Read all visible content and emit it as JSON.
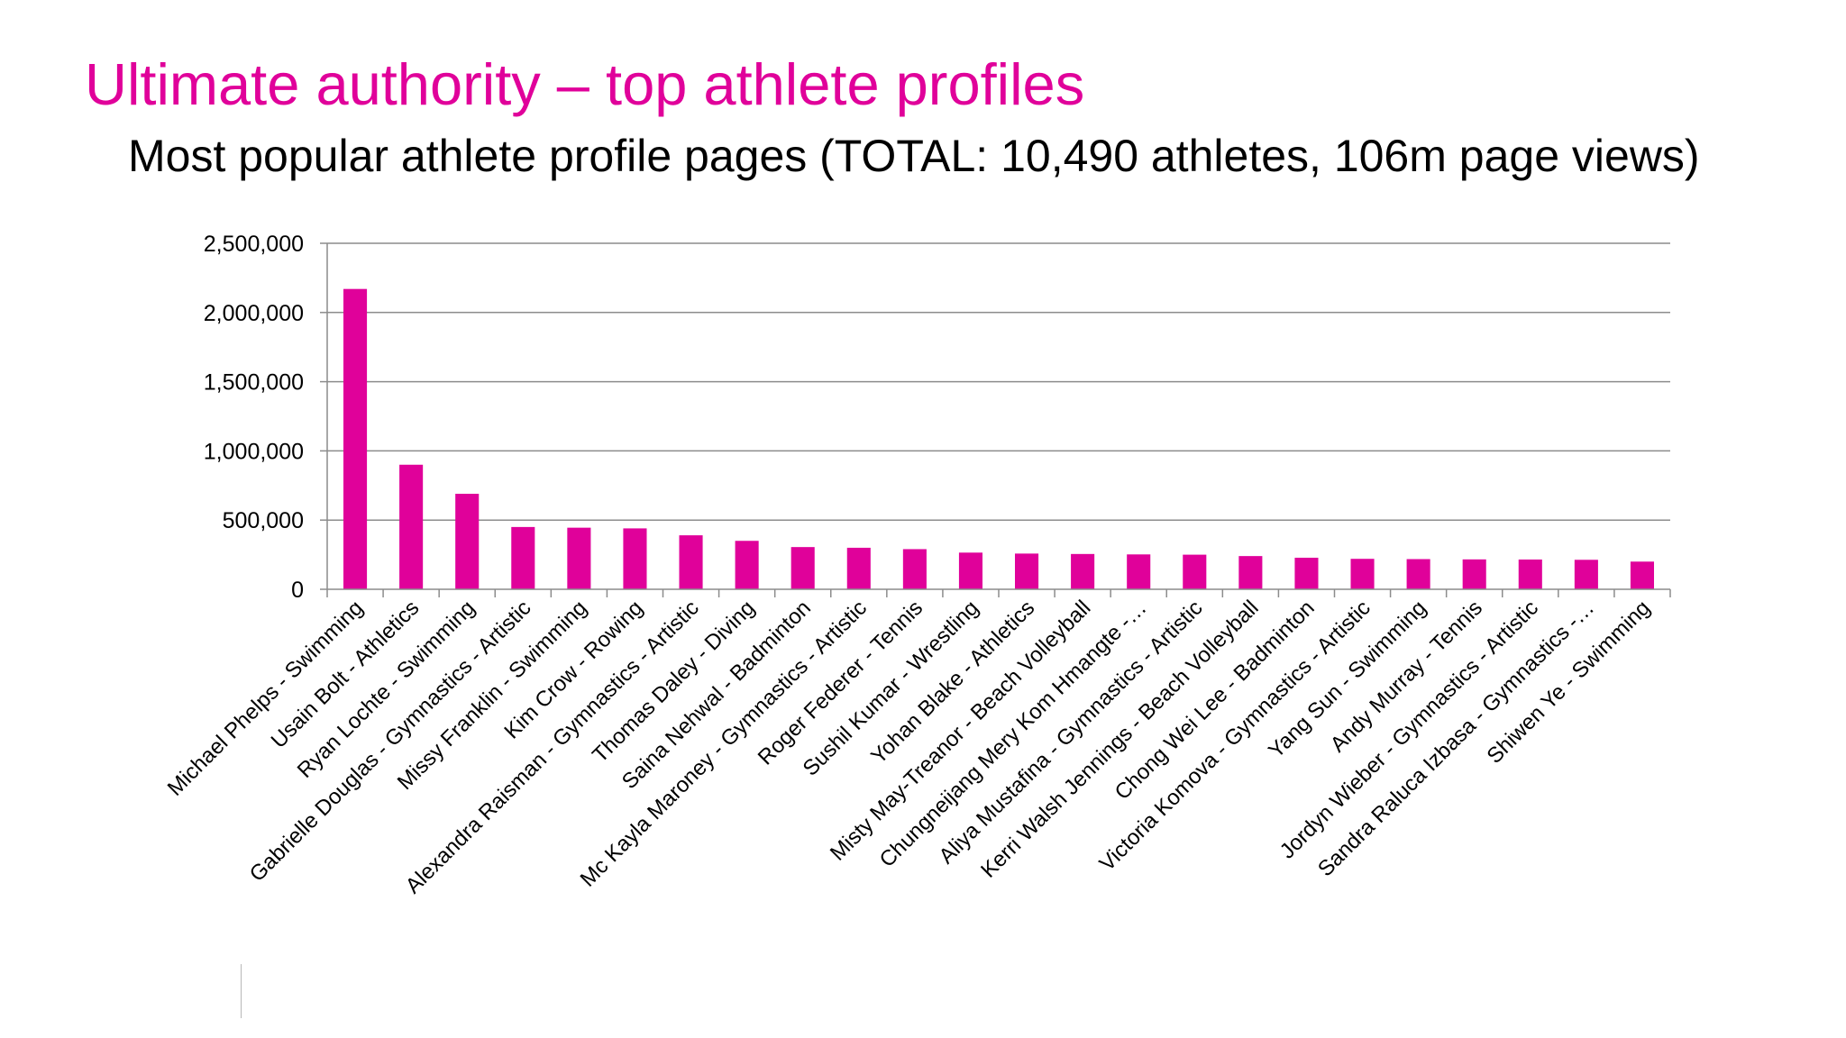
{
  "colors": {
    "accent": "#e0019a",
    "bar": "#e0019a",
    "grid": "#8c8c8c",
    "text": "#000000"
  },
  "slide": {
    "title": "Ultimate authority – top athlete profiles",
    "subtitle": "Most popular athlete profile pages (TOTAL: 10,490 athletes, 106m page views)"
  },
  "chart_data": {
    "type": "bar",
    "title": "",
    "xlabel": "",
    "ylabel": "",
    "ylim": [
      0,
      2500000
    ],
    "y_ticks": [
      0,
      500000,
      1000000,
      1500000,
      2000000,
      2500000
    ],
    "y_tick_labels": [
      "0",
      "500,000",
      "1,000,000",
      "1,500,000",
      "2,000,000",
      "2,500,000"
    ],
    "grid": true,
    "legend": "none",
    "categories": [
      "Michael Phelps - Swimming",
      "Usain Bolt - Athletics",
      "Ryan Lochte - Swimming",
      "Gabrielle Douglas - Gymnastics - Artistic",
      "Missy Franklin - Swimming",
      "Kim Crow - Rowing",
      "Alexandra Raisman - Gymnastics - Artistic",
      "Thomas Daley - Diving",
      "Saina Nehwal - Badminton",
      "Mc Kayla Maroney - Gymnastics - Artistic",
      "Roger Federer - Tennis",
      "Sushil Kumar - Wrestling",
      "Yohan Blake - Athletics",
      "Misty May-Treanor - Beach Volleyball",
      "Chungneijang Mery Kom Hmangte -…",
      "Aliya Mustafina - Gymnastics - Artistic",
      "Kerri Walsh Jennings - Beach Volleyball",
      "Chong Wei Lee - Badminton",
      "Victoria Komova - Gymnastics - Artistic",
      "Yang Sun - Swimming",
      "Andy Murray - Tennis",
      "Jordyn Wieber - Gymnastics - Artistic",
      "Sandra Raluca Izbasa - Gymnastics -…",
      "Shiwen Ye - Swimming"
    ],
    "values": [
      2170000,
      900000,
      690000,
      450000,
      445000,
      440000,
      390000,
      350000,
      305000,
      300000,
      290000,
      265000,
      258000,
      255000,
      252000,
      250000,
      240000,
      228000,
      220000,
      218000,
      216000,
      215000,
      213000,
      200000
    ]
  }
}
